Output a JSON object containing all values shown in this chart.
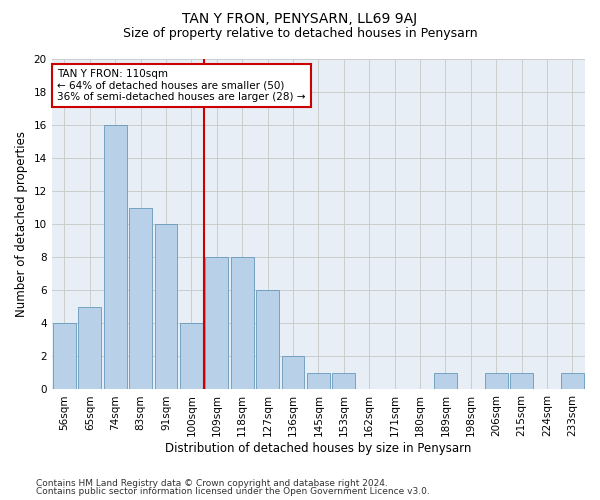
{
  "title": "TAN Y FRON, PENYSARN, LL69 9AJ",
  "subtitle": "Size of property relative to detached houses in Penysarn",
  "xlabel": "Distribution of detached houses by size in Penysarn",
  "ylabel": "Number of detached properties",
  "categories": [
    "56sqm",
    "65sqm",
    "74sqm",
    "83sqm",
    "91sqm",
    "100sqm",
    "109sqm",
    "118sqm",
    "127sqm",
    "136sqm",
    "145sqm",
    "153sqm",
    "162sqm",
    "171sqm",
    "180sqm",
    "189sqm",
    "198sqm",
    "206sqm",
    "215sqm",
    "224sqm",
    "233sqm"
  ],
  "values": [
    4,
    5,
    16,
    11,
    10,
    4,
    8,
    8,
    6,
    2,
    1,
    1,
    0,
    0,
    0,
    1,
    0,
    1,
    1,
    0,
    1
  ],
  "bar_color": "#b8d0e8",
  "bar_edge_color": "#6699bb",
  "vline_x_index": 6,
  "vline_color": "#cc0000",
  "annotation_box_text": "TAN Y FRON: 110sqm\n← 64% of detached houses are smaller (50)\n36% of semi-detached houses are larger (28) →",
  "annotation_box_color": "#cc0000",
  "annotation_box_fill": "#ffffff",
  "ylim": [
    0,
    20
  ],
  "yticks": [
    0,
    2,
    4,
    6,
    8,
    10,
    12,
    14,
    16,
    18,
    20
  ],
  "grid_color": "#cccccc",
  "background_color": "#e8eef5",
  "footer_line1": "Contains HM Land Registry data © Crown copyright and database right 2024.",
  "footer_line2": "Contains public sector information licensed under the Open Government Licence v3.0.",
  "title_fontsize": 10,
  "subtitle_fontsize": 9,
  "xlabel_fontsize": 8.5,
  "ylabel_fontsize": 8.5,
  "annotation_fontsize": 7.5,
  "footer_fontsize": 6.5,
  "tick_fontsize": 7.5
}
